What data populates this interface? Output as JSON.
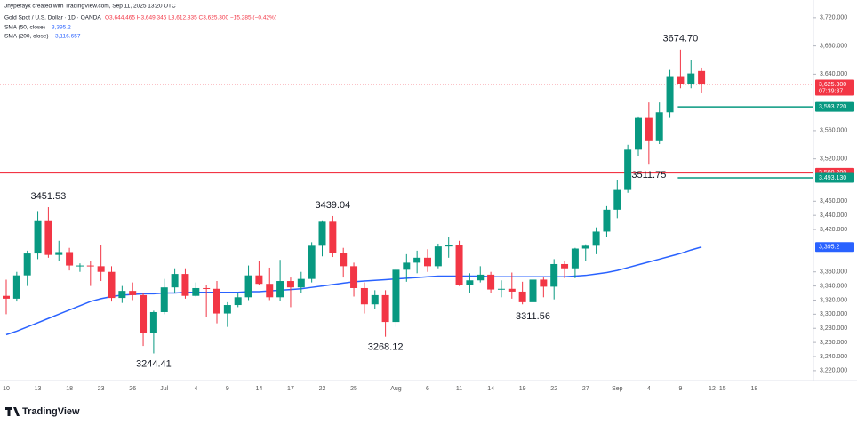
{
  "chart_data": {
    "type": "candlestick",
    "credit": "Jhyperayk created with TradingView.com, Sep 11, 2025 13:20 UTC",
    "symbol": "Gold Spot / U.S. Dollar · 1D · OANDA",
    "ohlc_text": "O3,644.465 H3,649.345 L3,612.835 C3,625.300 −15.285 (−0.42%)",
    "indicators": [
      {
        "name": "SMA (50, close)",
        "value_label": "3,395.2",
        "color": "#2962ff"
      },
      {
        "name": "SMA (200, close)",
        "value_label": "3,116.657",
        "color": "#2962ff"
      }
    ],
    "brand": "TradingView",
    "up_color": "#089981",
    "down_color": "#f23645",
    "ylim": [
      3206,
      3745
    ],
    "yticks": [
      {
        "value": 3220,
        "label": "3,220.000"
      },
      {
        "value": 3240,
        "label": "3,240.000"
      },
      {
        "value": 3260,
        "label": "3,260.000"
      },
      {
        "value": 3280,
        "label": "3,280.000"
      },
      {
        "value": 3300,
        "label": "3,300.000"
      },
      {
        "value": 3320,
        "label": "3,320.000"
      },
      {
        "value": 3340,
        "label": "3,340.000"
      },
      {
        "value": 3360,
        "label": "3,360.000"
      },
      {
        "value": 3420,
        "label": "3,420.000"
      },
      {
        "value": 3440,
        "label": "3,440.000"
      },
      {
        "value": 3460,
        "label": "3,460.000"
      },
      {
        "value": 3520,
        "label": "3,520.000"
      },
      {
        "value": 3560,
        "label": "3,560.000"
      },
      {
        "value": 3640,
        "label": "3,640.000"
      },
      {
        "value": 3680,
        "label": "3,680.000"
      },
      {
        "value": 3720,
        "label": "3,720.000"
      }
    ],
    "categories": [
      "10",
      null,
      null,
      "13",
      null,
      null,
      "18",
      null,
      null,
      "23",
      null,
      null,
      "26",
      null,
      null,
      "Jul",
      null,
      null,
      "4",
      null,
      null,
      "9",
      null,
      null,
      "14",
      null,
      null,
      "17",
      null,
      null,
      "22",
      null,
      null,
      "25",
      null,
      null,
      null,
      "Aug",
      null,
      null,
      "6",
      null,
      null,
      "11",
      null,
      null,
      "14",
      null,
      null,
      "19",
      null,
      null,
      "22",
      null,
      null,
      "27",
      null,
      null,
      "Sep",
      null,
      null,
      "4",
      null,
      null,
      "9",
      null,
      null,
      "12",
      "15",
      null,
      null,
      "18"
    ],
    "open": [
      3326,
      3322,
      3355,
      3386,
      3433,
      3384,
      3388,
      3369,
      3369,
      3368,
      3360,
      3323,
      3333,
      3327,
      3274,
      3303,
      3338,
      3357,
      3326,
      3337,
      3336,
      3301,
      3313,
      3324,
      3355,
      3343,
      3324,
      3347,
      3338,
      3350,
      3397,
      3431,
      3387,
      3368,
      3337,
      3314,
      3327,
      3289,
      3363,
      3373,
      3380,
      3368,
      3396,
      3398,
      3342,
      3348,
      3356,
      3335,
      3336,
      3332,
      3317,
      3349,
      3339,
      3371,
      3365,
      3393,
      3397,
      3417,
      3448,
      3476,
      3533,
      3578,
      3545,
      3586,
      3636,
      3626,
      3644.465,
      null,
      null,
      null,
      null,
      null
    ],
    "high": [
      3349,
      3360,
      3390,
      3446,
      3451.53,
      3404,
      3394,
      3372,
      3375,
      3398,
      3368,
      3340,
      3345,
      3330,
      3305,
      3350,
      3365,
      3365,
      3345,
      3342,
      3347,
      3317,
      3330,
      3369,
      3375,
      3366,
      3377,
      3352,
      3360,
      3402,
      3433,
      3439.04,
      3394,
      3373,
      3345,
      3334,
      3334,
      3365,
      3385,
      3390,
      3392,
      3400,
      3409,
      3404,
      3358,
      3368,
      3360,
      3348,
      3359,
      3346,
      3352,
      3352,
      3378,
      3376,
      3394,
      3399,
      3423,
      3453,
      3490,
      3540,
      3579,
      3600,
      3600,
      3646,
      3674.7,
      3660,
      3649.345,
      null,
      null,
      null,
      null,
      null
    ],
    "low": [
      3300,
      3318,
      3340,
      3378,
      3380,
      3376,
      3362,
      3360,
      3340,
      3347,
      3318,
      3316,
      3320,
      3255,
      3244.41,
      3300,
      3330,
      3322,
      3325,
      3296,
      3287,
      3282,
      3310,
      3320,
      3341,
      3320,
      3319,
      3310,
      3330,
      3345,
      3382,
      3381,
      3352,
      3325,
      3301,
      3308,
      3268.12,
      3282,
      3346,
      3358,
      3360,
      3365,
      3380,
      3340,
      3330,
      3345,
      3330,
      3324,
      3322,
      3314,
      3311.56,
      3324,
      3321,
      3351,
      3351,
      3375,
      3385,
      3409,
      3436,
      3472,
      3524,
      3511.75,
      3541,
      3578,
      3620,
      3620,
      3612.835,
      null,
      null,
      null,
      null,
      null
    ],
    "close": [
      3322,
      3355,
      3386,
      3433,
      3384,
      3388,
      3369,
      3369,
      3368,
      3360,
      3323,
      3333,
      3327,
      3274,
      3303,
      3338,
      3357,
      3326,
      3337,
      3336,
      3301,
      3313,
      3324,
      3355,
      3343,
      3324,
      3347,
      3338,
      3350,
      3397,
      3431,
      3387,
      3368,
      3337,
      3314,
      3327,
      3289,
      3363,
      3373,
      3380,
      3368,
      3396,
      3398,
      3342,
      3348,
      3356,
      3335,
      3336,
      3332,
      3317,
      3349,
      3339,
      3371,
      3365,
      3393,
      3397,
      3417,
      3448,
      3476,
      3533,
      3578,
      3545,
      3586,
      3636,
      3626,
      3641,
      3625.3,
      null,
      null,
      null,
      null,
      null
    ],
    "sma": {
      "name": "SMA (50, close)",
      "color": "#2962ff",
      "values": [
        3271,
        3276,
        3282,
        3288,
        3294,
        3300,
        3306,
        3312,
        3318,
        3322,
        3325,
        3327,
        3328,
        3329,
        3329,
        3330,
        3330,
        3331,
        3331,
        3331,
        3331,
        3331,
        3331,
        3332,
        3332,
        3333,
        3334,
        3335,
        3336,
        3338,
        3340,
        3342,
        3344,
        3346,
        3347,
        3348,
        3349,
        3350,
        3351,
        3352,
        3353,
        3354,
        3354,
        3354,
        3354,
        3354,
        3353,
        3353,
        3353,
        3353,
        3353,
        3353,
        3353,
        3353,
        3354,
        3355,
        3357,
        3359,
        3362,
        3366,
        3370,
        3374,
        3378,
        3382,
        3386,
        3391,
        3395.2,
        null,
        null,
        null,
        null,
        null
      ]
    },
    "levels": [
      {
        "value": 3500.2,
        "color": "#f23645",
        "anchor": 0
      },
      {
        "value": 3593.72,
        "color": "#089981",
        "anchor": 64
      },
      {
        "value": 3493.13,
        "color": "#089981",
        "anchor": 64
      }
    ],
    "price_tags": [
      {
        "value": 3625.3,
        "label": "3,625.300",
        "countdown": "07:39:37",
        "color": "#f23645"
      },
      {
        "value": 3593.72,
        "label": "3,593.720",
        "color": "#089981"
      },
      {
        "value": 3500.2,
        "label": "3,500.200",
        "color": "#f23645"
      },
      {
        "value": 3493.13,
        "label": "3,493.130",
        "color": "#089981"
      },
      {
        "value": 3395.2,
        "label": "3,395.2",
        "color": "#2962ff"
      }
    ],
    "annotations": [
      {
        "value": 3674.7,
        "label": "3674.70",
        "index": 64,
        "side": "above"
      },
      {
        "value": 3451.53,
        "label": "3451.53",
        "index": 4,
        "side": "above"
      },
      {
        "value": 3439.04,
        "label": "3439.04",
        "index": 31,
        "side": "above"
      },
      {
        "value": 3244.41,
        "label": "3244.41",
        "index": 14,
        "side": "below"
      },
      {
        "value": 3268.12,
        "label": "3268.12",
        "index": 36,
        "side": "below"
      },
      {
        "value": 3311.56,
        "label": "3311.56",
        "index": 50,
        "side": "below"
      },
      {
        "value": 3511.75,
        "label": "3511.75",
        "index": 61,
        "side": "below"
      }
    ]
  }
}
